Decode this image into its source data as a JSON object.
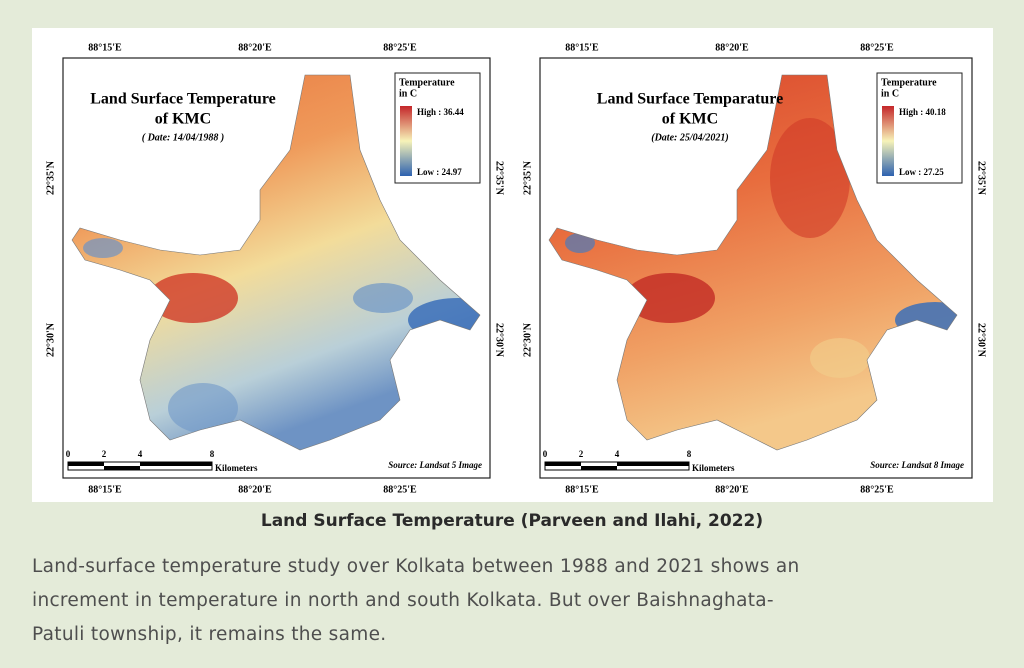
{
  "figure": {
    "maps": [
      {
        "title": [
          "Land Surface Temperature",
          "of KMC"
        ],
        "date": "( Date: 14/04/1988 )",
        "legend": {
          "title": [
            "Temperature",
            "in C"
          ],
          "high": "High : 36.44",
          "low": "Low : 24.97"
        },
        "lon_labels": [
          "88°15'E",
          "88°20'E",
          "88°25'E"
        ],
        "lat_labels": [
          "22°35'N",
          "22°30'N"
        ],
        "scale": {
          "ticks": [
            "0",
            "2",
            "4",
            "8"
          ],
          "unit": "Kilometers"
        },
        "source": "Source: Landsat 5 Image"
      },
      {
        "title": [
          "Land Surface Temparature",
          "of KMC"
        ],
        "date": "(Date: 25/04/2021)",
        "legend": {
          "title": [
            "Temperature",
            "in C"
          ],
          "high": "High : 40.18",
          "low": "Low : 27.25"
        },
        "lon_labels": [
          "88°15'E",
          "88°20'E",
          "88°25'E"
        ],
        "lat_labels": [
          "22°35'N",
          "22°30'N"
        ],
        "scale": {
          "ticks": [
            "0",
            "2",
            "4",
            "8"
          ],
          "unit": "Kilometers"
        },
        "source": "Source: Landsat 8 Image"
      }
    ],
    "caption": "Land Surface Temperature (Parveen and Ilahi, 2022)"
  },
  "body": {
    "lines": [
      "Land-surface temperature study over Kolkata between 1988 and 2021 shows an",
      "increment in temperature in north and south Kolkata. But over Baishnaghata-",
      "Patuli township, it remains the same."
    ]
  }
}
